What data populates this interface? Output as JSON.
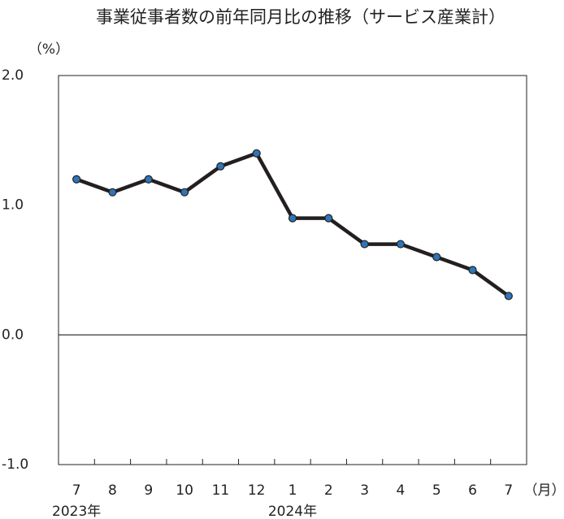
{
  "chart_data": {
    "type": "line",
    "title": "事業従事者数の前年同月比の推移（サービス産業計）",
    "y_unit": "（%）",
    "x_unit": "（月）",
    "categories": [
      "7",
      "8",
      "9",
      "10",
      "11",
      "12",
      "1",
      "2",
      "3",
      "4",
      "5",
      "6",
      "7"
    ],
    "year_labels": [
      "2023年",
      null,
      null,
      null,
      null,
      null,
      "2024年",
      null,
      null,
      null,
      null,
      null,
      null
    ],
    "series": [
      {
        "name": "前年同月比",
        "color": "#231f20",
        "marker_color": "#2e75b6",
        "values": [
          1.2,
          1.1,
          1.2,
          1.1,
          1.3,
          1.4,
          0.9,
          0.9,
          0.7,
          0.7,
          0.6,
          0.5,
          0.3
        ]
      }
    ],
    "ylim": [
      -1.0,
      2.0
    ],
    "yticks": [
      {
        "value": 2.0,
        "label": "2.0"
      },
      {
        "value": 1.0,
        "label": "1.0"
      },
      {
        "value": 0.0,
        "label": "0.0"
      },
      {
        "value": -1.0,
        "label": "-1.0"
      }
    ]
  }
}
